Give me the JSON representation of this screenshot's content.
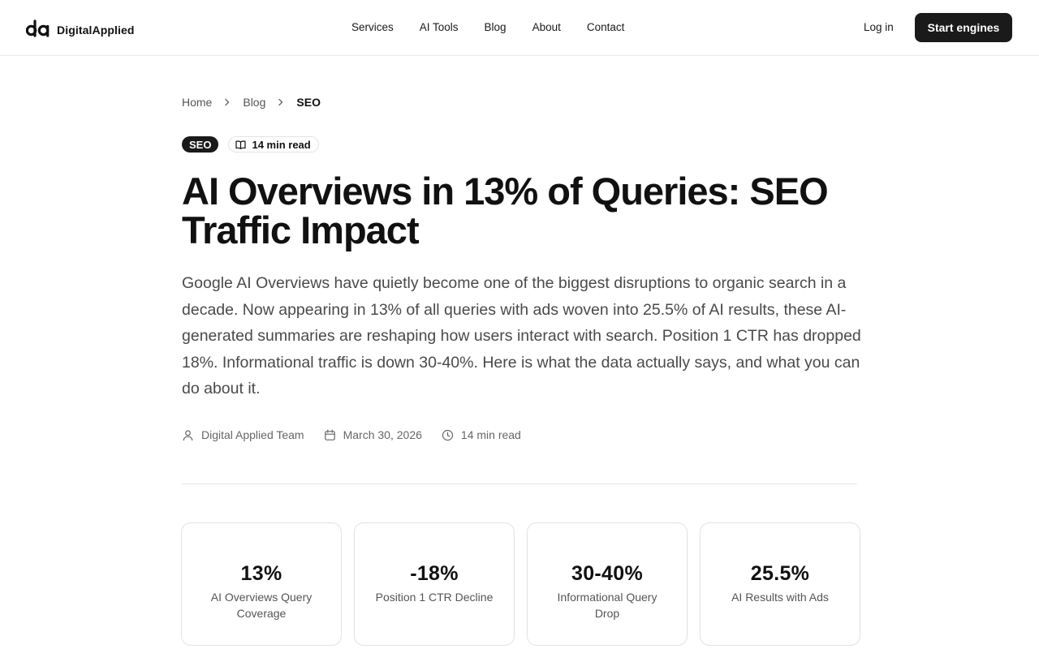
{
  "header": {
    "logo_text": "DigitalApplied",
    "nav": [
      "Services",
      "AI Tools",
      "Blog",
      "About",
      "Contact"
    ],
    "login_label": "Log in",
    "cta_label": "Start engines"
  },
  "breadcrumb": {
    "items": [
      "Home",
      "Blog"
    ],
    "current": "SEO"
  },
  "tags": {
    "category": "SEO",
    "read_time": "14 min read"
  },
  "article": {
    "title": "AI Overviews in 13% of Queries: SEO Traffic Impact",
    "lead": "Google AI Overviews have quietly become one of the biggest disruptions to organic search in a decade. Now appearing in 13% of all queries with ads woven into 25.5% of AI results, these AI-generated summaries are reshaping how users interact with search. Position 1 CTR has dropped 18%. Informational traffic is down 30-40%. Here is what the data actually says, and what you can do about it.",
    "author": "Digital Applied Team",
    "date": "March 30, 2026",
    "read_time": "14 min read"
  },
  "stats": [
    {
      "value": "13%",
      "label": "AI Overviews Query Coverage"
    },
    {
      "value": "-18%",
      "label": "Position 1 CTR Decline"
    },
    {
      "value": "30-40%",
      "label": "Informational Query Drop"
    },
    {
      "value": "25.5%",
      "label": "AI Results with Ads"
    }
  ],
  "icons": {
    "logo": "digitalapplied-logo-mark",
    "breadcrumb_separator": "chevron-right-icon",
    "read_time": "book-open-icon",
    "author": "user-icon",
    "date": "calendar-icon",
    "time": "clock-icon"
  },
  "colors": {
    "primary": "#1a1a1a",
    "text": "#111111",
    "muted": "#555555",
    "border": "#e2e2e2"
  }
}
